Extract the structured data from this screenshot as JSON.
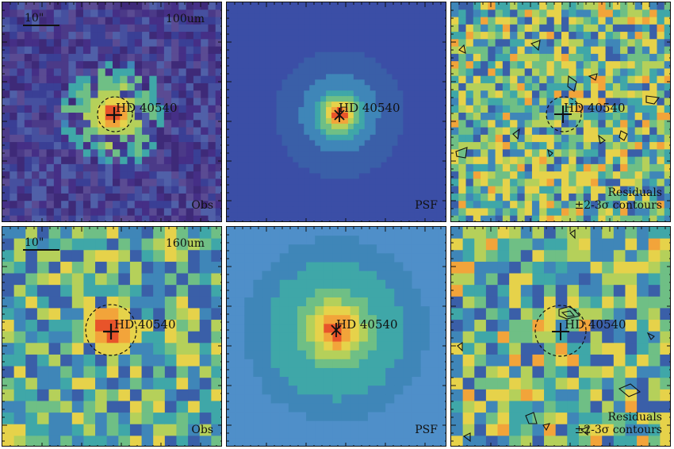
{
  "figure": {
    "source_label": "HD 40540",
    "scale_bar": "10\"",
    "rows": [
      {
        "band": "100um",
        "panels": [
          {
            "type": "Obs",
            "label": "Obs",
            "palette": "obs100"
          },
          {
            "type": "PSF",
            "label": "PSF",
            "palette": "psf100"
          },
          {
            "type": "Residuals",
            "label_line1": "Residuals",
            "label_line2": "±2-3σ contours",
            "palette": "res"
          }
        ]
      },
      {
        "band": "160um",
        "panels": [
          {
            "type": "Obs",
            "label": "Obs",
            "palette": "obs160"
          },
          {
            "type": "PSF",
            "label": "PSF",
            "palette": "psf160"
          },
          {
            "type": "Residuals",
            "label_line1": "Residuals",
            "label_line2": "±2-3σ contours",
            "palette": "res"
          }
        ]
      }
    ]
  },
  "colors": {
    "frame": "#111111",
    "psf100_bg": "#3b4ea6",
    "psf160_bg": "#4f8fc9",
    "hot": "#e8542a",
    "warm": "#f2b23a"
  }
}
